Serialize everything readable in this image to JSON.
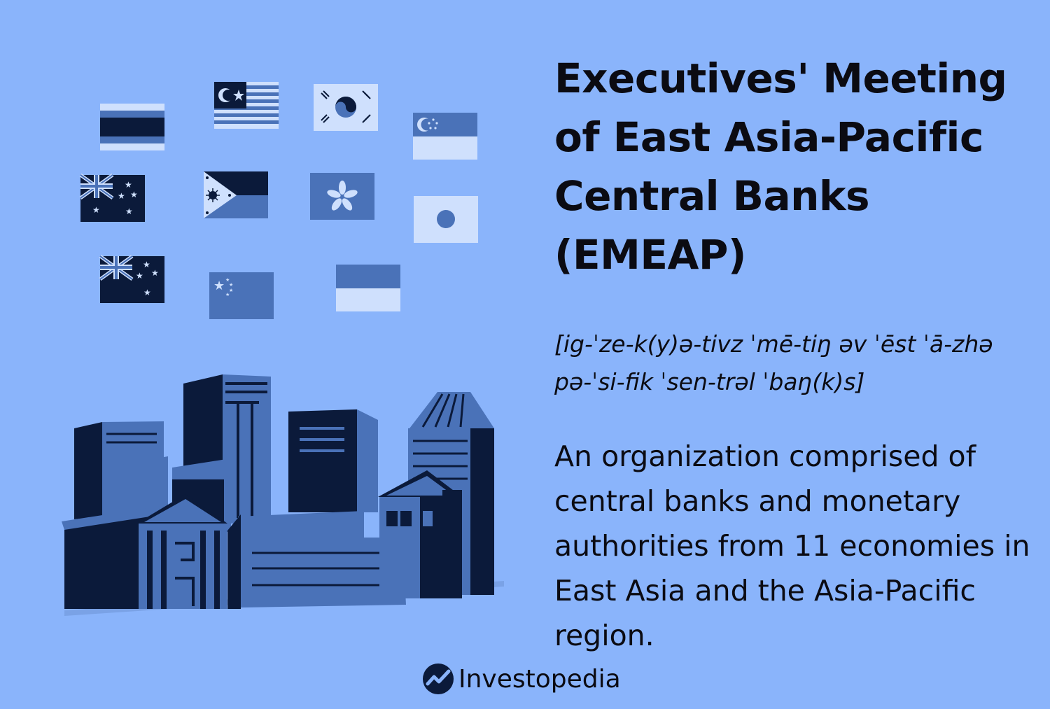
{
  "header": {
    "title": "Executives' Meeting of East Asia-Pacific Central Banks (EMEAP)"
  },
  "pronunciation": "[ig-ˈze-k(y)ə-tivz ˈmē-tiŋ əv ˈēst ˈā-zhə pə-ˈsi-fik ˈsen-trəl ˈbaŋ(k)s]",
  "definition": "An organization comprised of central banks and monetary authorities from 11 economies in East Asia and the Asia-Pacific region.",
  "brand": {
    "name": "Investopedia",
    "icon": "investopedia-logo-icon"
  },
  "illustration": {
    "flags": [
      "thailand",
      "malaysia",
      "south-korea",
      "singapore",
      "australia",
      "philippines",
      "hong-kong",
      "japan",
      "new-zealand",
      "china",
      "indonesia"
    ],
    "subject": "city-skyline-buildings"
  },
  "colors": {
    "background": "#8ab4fb",
    "ink": "#0b0b12",
    "mid_blue": "#4a72b8",
    "light_blue": "#cfe0fd"
  }
}
